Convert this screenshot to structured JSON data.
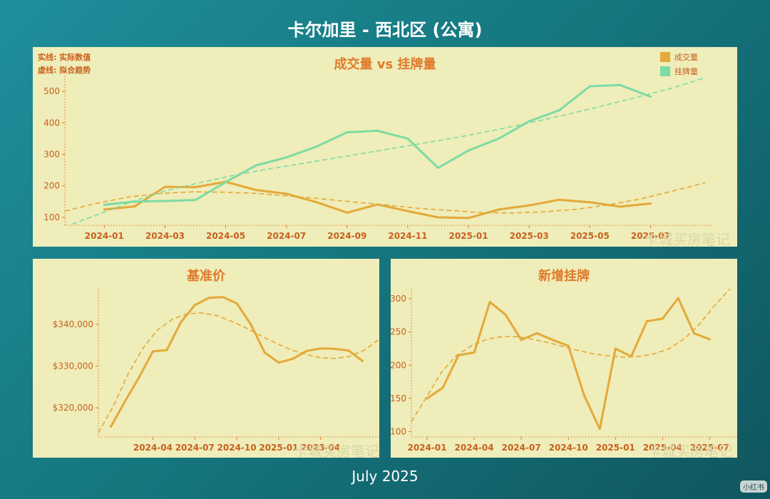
{
  "page": {
    "title": "卡尔加里 - 西北区 (公寓)",
    "footer": "July 2025",
    "watermark": "卡城买房笔记",
    "badge": "小红书"
  },
  "colors": {
    "sales": "#e3a93a",
    "listings": "#7ddba4",
    "axis": "#e07a2a",
    "tick": "#c8601e"
  },
  "top_panel": {
    "note_line1": "实线: 实际数值",
    "note_line2": "虚线: 拟合趋势"
  },
  "chart_data": [
    {
      "id": "volume",
      "type": "line",
      "title": "成交量 vs 挂牌量",
      "x": [
        "2024-01",
        "2024-02",
        "2024-03",
        "2024-04",
        "2024-05",
        "2024-06",
        "2024-07",
        "2024-08",
        "2024-09",
        "2024-10",
        "2024-11",
        "2024-12",
        "2025-01",
        "2025-02",
        "2025-03",
        "2025-04",
        "2025-05",
        "2025-06",
        "2025-07"
      ],
      "x_ticks": [
        "2024-01",
        "2024-03",
        "2024-05",
        "2024-07",
        "2024-09",
        "2024-11",
        "2025-01",
        "2025-03",
        "2025-05",
        "2025-07"
      ],
      "y_ticks": [
        100,
        200,
        300,
        400,
        500
      ],
      "ylim": [
        75,
        550
      ],
      "series": [
        {
          "name": "成交量",
          "color": "#e3a93a",
          "values": [
            125,
            135,
            197,
            196,
            213,
            187,
            175,
            148,
            115,
            141,
            120,
            100,
            98,
            125,
            138,
            156,
            148,
            134,
            144
          ],
          "trend": [
            120,
            145,
            165,
            176,
            181,
            180,
            176,
            168,
            159,
            149,
            140,
            129,
            122,
            115,
            114,
            118,
            126,
            140,
            159,
            184,
            210
          ]
        },
        {
          "name": "挂牌量",
          "color": "#7ddba4",
          "values": [
            140,
            150,
            152,
            155,
            212,
            265,
            290,
            325,
            370,
            375,
            350,
            257,
            312,
            350,
            405,
            440,
            516,
            520,
            483
          ],
          "trend": [
            70,
            110,
            150,
            185,
            210,
            233,
            253,
            270,
            288,
            306,
            324,
            342,
            361,
            382,
            405,
            429,
            455,
            482,
            510,
            543
          ]
        }
      ]
    },
    {
      "id": "benchmark",
      "type": "line",
      "title": "基准价",
      "x": [
        "2024-01",
        "2024-02",
        "2024-03",
        "2024-04",
        "2024-05",
        "2024-06",
        "2024-07",
        "2024-08",
        "2024-09",
        "2024-10",
        "2024-11",
        "2024-12",
        "2025-01",
        "2025-02",
        "2025-03",
        "2025-04",
        "2025-05",
        "2025-06",
        "2025-07"
      ],
      "x_ticks": [
        "2024-04",
        "2024-07",
        "2024-10",
        "2025-01",
        "2025-04"
      ],
      "y_ticks": [
        320000,
        330000,
        340000
      ],
      "y_tick_labels": [
        "$320,000",
        "$330,000",
        "$340,000"
      ],
      "ylim": [
        313000,
        348500
      ],
      "series": [
        {
          "name": "基准价",
          "color": "#e3a93a",
          "values": [
            315500,
            321500,
            327200,
            333500,
            333800,
            340500,
            344600,
            346300,
            346500,
            345000,
            340000,
            333200,
            330800,
            331700,
            333600,
            334200,
            334100,
            333700,
            331200
          ],
          "trend": [
            314000,
            320300,
            328000,
            334200,
            338600,
            341200,
            342500,
            342700,
            342100,
            340700,
            339100,
            337200,
            335500,
            333900,
            332800,
            332000,
            331800,
            332300,
            333800,
            336400
          ]
        }
      ]
    },
    {
      "id": "new_listings",
      "type": "line",
      "title": "新增挂牌",
      "x": [
        "2024-01",
        "2024-02",
        "2024-03",
        "2024-04",
        "2024-05",
        "2024-06",
        "2024-07",
        "2024-08",
        "2024-09",
        "2024-10",
        "2024-11",
        "2024-12",
        "2025-01",
        "2025-02",
        "2025-03",
        "2025-04",
        "2025-05",
        "2025-06",
        "2025-07"
      ],
      "x_ticks": [
        "2024-01",
        "2024-04",
        "2024-07",
        "2024-10",
        "2025-01",
        "2025-04",
        "2025-07"
      ],
      "y_ticks": [
        100,
        150,
        200,
        250,
        300
      ],
      "ylim": [
        92,
        315
      ],
      "series": [
        {
          "name": "新增挂牌",
          "color": "#e3a93a",
          "values": [
            150,
            166,
            215,
            219,
            295,
            276,
            238,
            248,
            238,
            229,
            155,
            104,
            225,
            213,
            266,
            270,
            301,
            248,
            239
          ],
          "trend": [
            115,
            152,
            190,
            215,
            230,
            239,
            243,
            243,
            239,
            234,
            228,
            222,
            217,
            214,
            212,
            213,
            217,
            225,
            240,
            262,
            290,
            315
          ]
        }
      ]
    }
  ]
}
